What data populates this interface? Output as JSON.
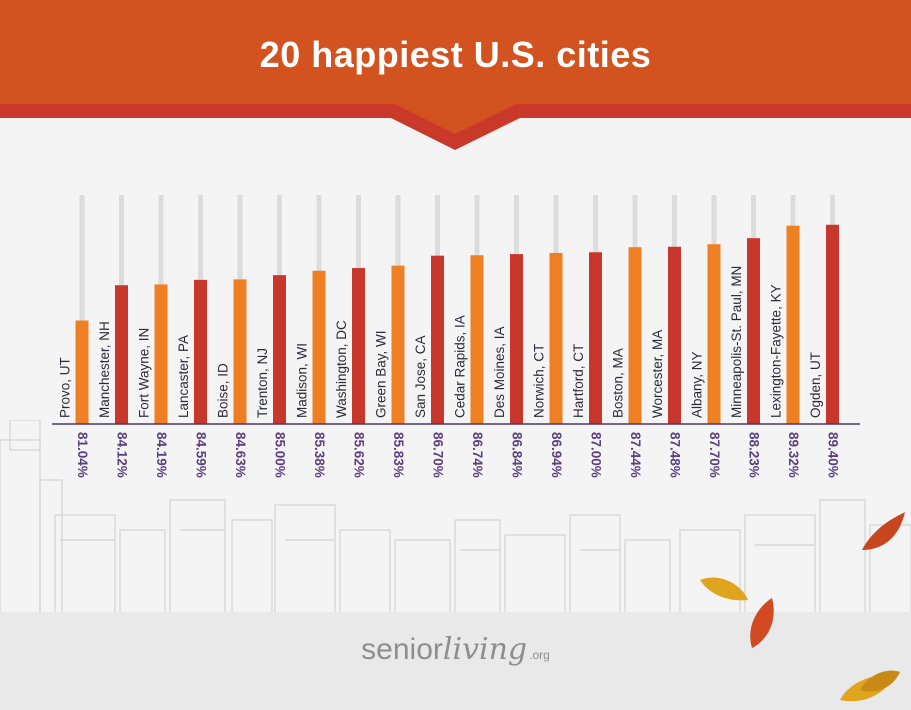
{
  "header": {
    "title": "20 happiest U.S. cities"
  },
  "logo": {
    "main": "senior",
    "cursive": "living",
    "tld": ".org"
  },
  "colors": {
    "banner": "#d2531f",
    "banner_stripe": "#c9392a",
    "orange": "#ef7f23",
    "red": "#c8372b",
    "purple": "#5b3f7f"
  },
  "chart_data": {
    "type": "bar",
    "categories": [
      "Provo, UT",
      "Manchester, NH",
      "Fort Wayne, IN",
      "Lancaster, PA",
      "Boise, ID",
      "Trenton, NJ",
      "Madison, WI",
      "Washington, DC",
      "Green Bay, WI",
      "San Jose, CA",
      "Cedar Rapids, IA",
      "Des Moines, IA",
      "Norwich, CT",
      "Hartford, CT",
      "Boston, MA",
      "Worcester, MA",
      "Albany, NY",
      "Minneapolis-St. Paul, MN",
      "Lexington-Fayette, KY",
      "Ogden, UT"
    ],
    "values": [
      81.04,
      84.12,
      84.19,
      84.59,
      84.63,
      85.0,
      85.38,
      85.62,
      85.83,
      86.7,
      86.74,
      86.84,
      86.94,
      87.0,
      87.44,
      87.48,
      87.7,
      88.23,
      89.32,
      89.4
    ],
    "value_labels": [
      "81.04%",
      "84.12%",
      "84.19%",
      "84.59%",
      "84.63%",
      "85.00%",
      "85.38%",
      "85.62%",
      "85.83%",
      "86.70%",
      "86.74%",
      "86.84%",
      "86.94%",
      "87.00%",
      "87.44%",
      "87.48%",
      "87.70%",
      "88.23%",
      "89.32%",
      "89.40%"
    ],
    "bar_colors": [
      "#ef7f23",
      "#c8372b",
      "#ef7f23",
      "#c8372b",
      "#ef7f23",
      "#c8372b",
      "#ef7f23",
      "#c8372b",
      "#ef7f23",
      "#c8372b",
      "#ef7f23",
      "#c8372b",
      "#ef7f23",
      "#c8372b",
      "#ef7f23",
      "#c8372b",
      "#ef7f23",
      "#c8372b",
      "#ef7f23",
      "#c8372b"
    ],
    "title": "20 happiest U.S. cities",
    "xlabel": "",
    "ylabel": "",
    "ylim": [
      0,
      100
    ],
    "grid": false,
    "legend": "none"
  }
}
